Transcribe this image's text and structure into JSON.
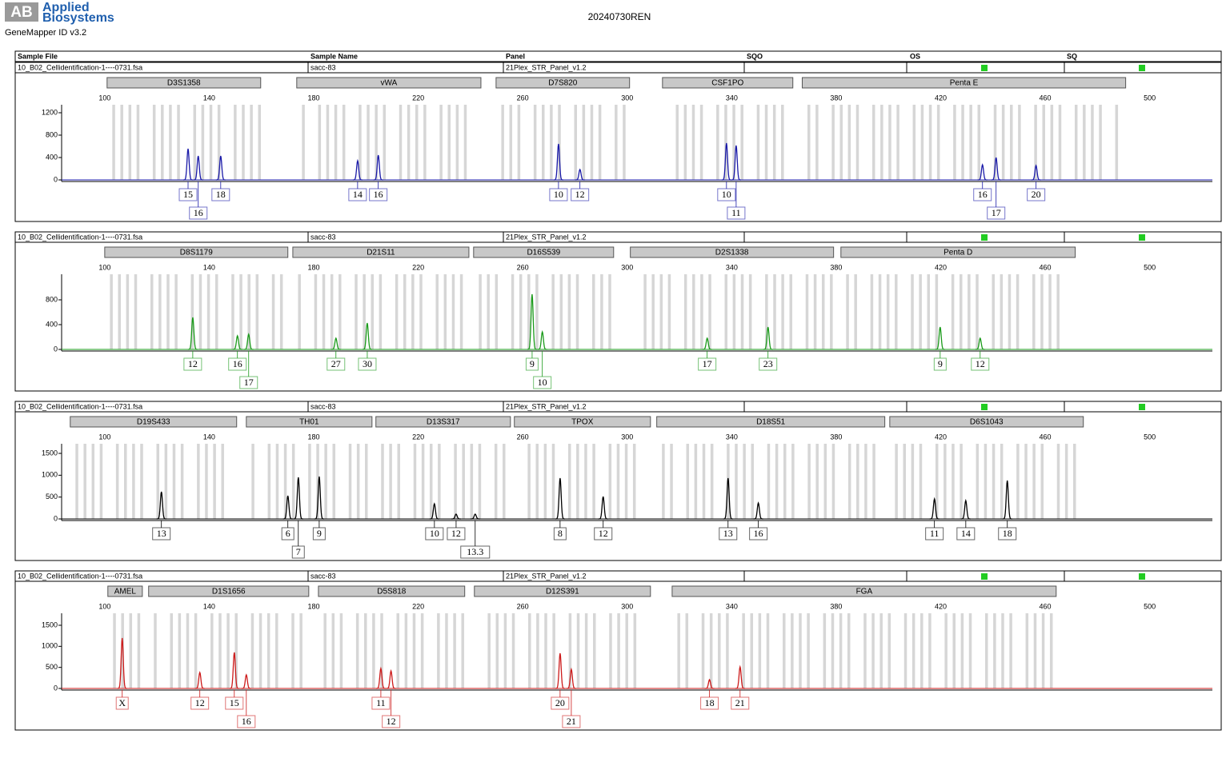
{
  "header": {
    "logo": "AB",
    "brand": [
      "Applied",
      "Biosystems"
    ],
    "software": "GeneMapper ID v3.2",
    "title": "20240730REN"
  },
  "columns": [
    "Sample File",
    "Sample Name",
    "Panel",
    "SQO",
    "OS",
    "SQ"
  ],
  "chart_data": [
    {
      "type": "electropherogram",
      "sample_file": "10_B02_Cellidentification-1----0731.fsa",
      "sample_name": "sacc-83",
      "panel": "21Plex_STR_Panel_v1.2",
      "color": "#1a1aa8",
      "xlim": [
        83.5,
        524
      ],
      "xticks": [
        100,
        140,
        180,
        220,
        260,
        300,
        340,
        380,
        420,
        460,
        500
      ],
      "ylim": [
        0,
        1343
      ],
      "yticks": [
        0,
        400,
        800,
        1200
      ],
      "loci": [
        {
          "name": "D3S1358",
          "start": 100.9,
          "end": 159.7
        },
        {
          "name": "vWA",
          "start": 173.5,
          "end": 244
        },
        {
          "name": "D7S820",
          "start": 249.8,
          "end": 300.9
        },
        {
          "name": "CSF1PO",
          "start": 313.5,
          "end": 363.4
        },
        {
          "name": "Penta E",
          "start": 367,
          "end": 490.8
        }
      ],
      "peaks": {
        "x": [
          131.9,
          135.8,
          144.4,
          196.8,
          204.7,
          273.7,
          281.9,
          338,
          341.7,
          436,
          441.2,
          456.5
        ],
        "values": [
          557,
          428,
          428,
          343,
          443,
          643,
          186,
          657,
          614,
          271,
          400,
          257
        ],
        "labels": [
          "15",
          "16",
          "18",
          "14",
          "16",
          "10",
          "12",
          "10",
          "11",
          "16",
          "17",
          "20"
        ]
      }
    },
    {
      "type": "electropherogram",
      "sample_file": "10_B02_Cellidentification-1----0731.fsa",
      "sample_name": "sacc-83",
      "panel": "21Plex_STR_Panel_v1.2",
      "color": "#1a9a1a",
      "xlim": [
        83.5,
        524
      ],
      "xticks": [
        100,
        140,
        180,
        220,
        260,
        300,
        340,
        380,
        420,
        460,
        500
      ],
      "ylim": [
        0,
        1213
      ],
      "yticks": [
        0,
        400,
        800
      ],
      "loci": [
        {
          "name": "D8S1179",
          "start": 100,
          "end": 170.1
        },
        {
          "name": "D21S11",
          "start": 172,
          "end": 239.4
        },
        {
          "name": "D16S539",
          "start": 241.2,
          "end": 294.8
        },
        {
          "name": "D2S1338",
          "start": 301.2,
          "end": 379
        },
        {
          "name": "Penta D",
          "start": 381.8,
          "end": 471.5
        }
      ],
      "peaks": {
        "x": [
          133.7,
          150.8,
          155.1,
          188.5,
          200.5,
          263.6,
          267.5,
          330.6,
          353.9,
          419.8,
          435.1
        ],
        "values": [
          516,
          219,
          245,
          181,
          426,
          890,
          284,
          181,
          361,
          361,
          181
        ],
        "labels": [
          "12",
          "16",
          "17",
          "27",
          "30",
          "9",
          "10",
          "17",
          "23",
          "9",
          "12"
        ]
      }
    },
    {
      "type": "electropherogram",
      "sample_file": "10_B02_Cellidentification-1----0731.fsa",
      "sample_name": "sacc-83",
      "panel": "21Plex_STR_Panel_v1.2",
      "color": "#000000",
      "xlim": [
        83.5,
        524
      ],
      "xticks": [
        100,
        140,
        180,
        220,
        260,
        300,
        340,
        380,
        420,
        460,
        500
      ],
      "ylim": [
        0,
        1720
      ],
      "yticks": [
        0,
        500,
        1000,
        1500
      ],
      "loci": [
        {
          "name": "D19S433",
          "start": 86.8,
          "end": 150.5
        },
        {
          "name": "TH01",
          "start": 154.2,
          "end": 202.3
        },
        {
          "name": "D13S317",
          "start": 203.8,
          "end": 255.3
        },
        {
          "name": "TPOX",
          "start": 256.8,
          "end": 308.9
        },
        {
          "name": "D18S51",
          "start": 311.3,
          "end": 398.6
        },
        {
          "name": "D6S1043",
          "start": 400.5,
          "end": 474.6
        }
      ],
      "peaks": {
        "x": [
          121.7,
          170.1,
          174.1,
          182.1,
          226.2,
          234.5,
          241.8,
          274.3,
          290.8,
          338.6,
          350.2,
          417.6,
          429.6,
          445.5
        ],
        "values": [
          622,
          530,
          951,
          970,
          348,
          110,
          110,
          933,
          512,
          933,
          366,
          457,
          421,
          878
        ],
        "labels": [
          "13",
          "6",
          "7",
          "9",
          "10",
          "12",
          "13.3",
          "8",
          "12",
          "13",
          "16",
          "11",
          "14",
          "18"
        ]
      }
    },
    {
      "type": "electropherogram",
      "sample_file": "10_B02_Cellidentification-1----0731.fsa",
      "sample_name": "sacc-83",
      "panel": "21Plex_STR_Panel_v1.2",
      "color": "#cc1a1a",
      "xlim": [
        83.5,
        524
      ],
      "xticks": [
        100,
        140,
        180,
        220,
        260,
        300,
        340,
        380,
        420,
        460,
        500
      ],
      "ylim": [
        0,
        1785
      ],
      "yticks": [
        0,
        500,
        1000,
        1500
      ],
      "loci": [
        {
          "name": "AMEL",
          "start": 101.2,
          "end": 114.4
        },
        {
          "name": "D1S1656",
          "start": 116.8,
          "end": 178.1
        },
        {
          "name": "D5S818",
          "start": 181.8,
          "end": 237.8
        },
        {
          "name": "D12S391",
          "start": 241.5,
          "end": 308.9
        },
        {
          "name": "FGA",
          "start": 317.2,
          "end": 464.2
        }
      ],
      "peaks": {
        "x": [
          106.7,
          136.4,
          149.6,
          154.2,
          205.7,
          209.6,
          274.3,
          278.6,
          331.5,
          343.2
        ],
        "values": [
          1196,
          380,
          854,
          323,
          475,
          418,
          835,
          456,
          209,
          513
        ],
        "labels": [
          "X",
          "12",
          "15",
          "16",
          "11",
          "12",
          "20",
          "21",
          "18",
          "21"
        ]
      }
    }
  ]
}
